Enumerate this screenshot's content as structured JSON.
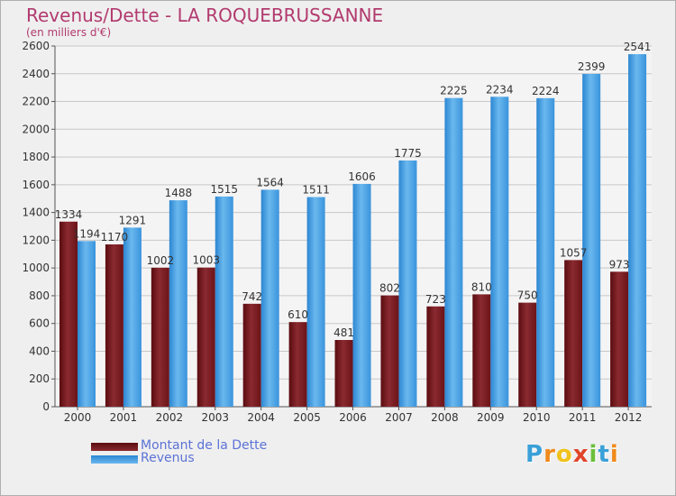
{
  "chart_data": {
    "type": "bar",
    "title": "Revenus/Dette - LA ROQUEBRUSSANNE",
    "subtitle": "(en milliers d'€)",
    "categories": [
      "2000",
      "2001",
      "2002",
      "2003",
      "2004",
      "2005",
      "2006",
      "2007",
      "2008",
      "2009",
      "2010",
      "2011",
      "2012"
    ],
    "series": [
      {
        "name": "Montant de la Dette",
        "values": [
          1334,
          1170,
          1002,
          1003,
          742,
          610,
          481,
          802,
          723,
          810,
          750,
          1057,
          973
        ],
        "labels": [
          "1334",
          "1170",
          "1002",
          "1003",
          "742",
          "610",
          "481",
          "802",
          "723",
          "810",
          "750",
          "1057",
          "973"
        ],
        "color": "#7a1a1e"
      },
      {
        "name": "Revenus",
        "values": [
          1194,
          1291,
          1488,
          1515,
          1564,
          1511,
          1606,
          1775,
          2225,
          2234,
          2224,
          2399,
          2541
        ],
        "labels": [
          "1194",
          "1291",
          "1488",
          "1515",
          "1564",
          "1511",
          "1606",
          "1775",
          "2225",
          "2234",
          "2224",
          "2399",
          "2541"
        ],
        "color": "#3f97de"
      }
    ],
    "ylim": [
      0,
      2600
    ],
    "yticks": [
      0,
      200,
      400,
      600,
      800,
      1000,
      1200,
      1400,
      1600,
      1800,
      2000,
      2200,
      2400,
      2600
    ],
    "grid": true,
    "legend_position": "bottom-left"
  },
  "logo": {
    "letters": [
      "P",
      "r",
      "o",
      "x",
      "i",
      "t",
      "i"
    ],
    "colors": [
      "#3aa0d8",
      "#f08a1c",
      "#f0c21c",
      "#e0452a",
      "#6cbf3a",
      "#3aa0d8",
      "#f08a1c"
    ]
  }
}
